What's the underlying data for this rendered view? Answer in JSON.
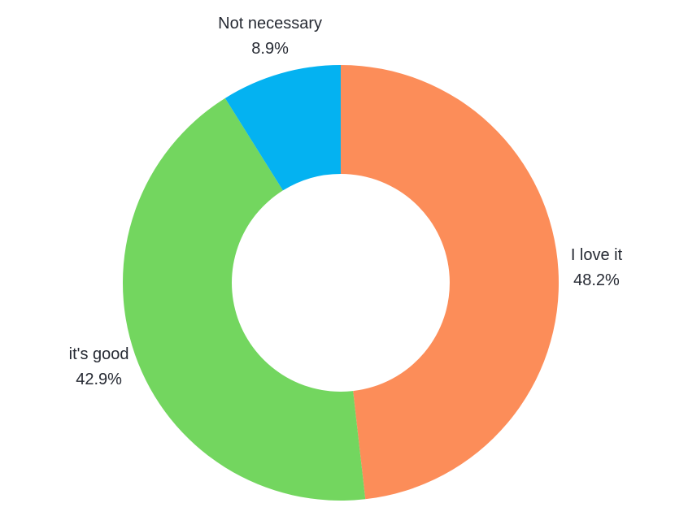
{
  "page": {
    "background_color": "#ffffff",
    "text_color": "#262a33"
  },
  "chart_data": {
    "type": "pie",
    "subtype": "donut",
    "title": "",
    "hole_ratio": 0.5,
    "direction": "clockwise",
    "start_angle_deg": 0,
    "labels_position": "outside",
    "legend": "none",
    "categories": [
      "I love it",
      "it's good",
      "Not necessary"
    ],
    "values": [
      48.2,
      42.9,
      8.9
    ],
    "slices": [
      {
        "label": "I love it",
        "value": 48.2,
        "percent_label": "48.2%",
        "color": "#fc8d59"
      },
      {
        "label": "it's good",
        "value": 42.9,
        "percent_label": "42.9%",
        "color": "#73d65f"
      },
      {
        "label": "Not necessary",
        "value": 8.9,
        "percent_label": "8.9%",
        "color": "#04b2f1"
      }
    ]
  }
}
